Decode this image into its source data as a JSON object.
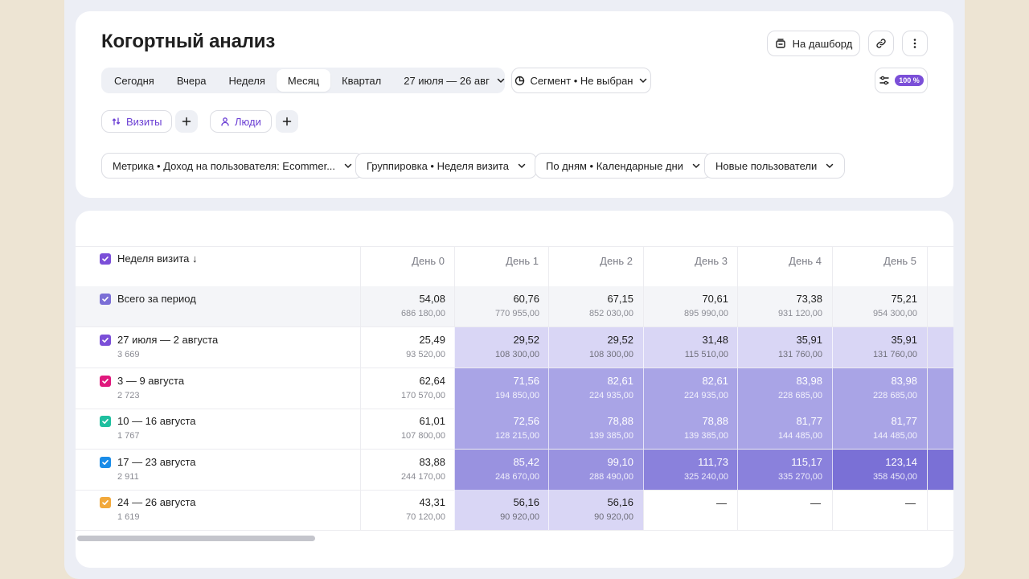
{
  "header": {
    "title": "Когортный анализ",
    "dashboard_label": "На дашборд",
    "sampling_badge": "100 %"
  },
  "periods": {
    "items": [
      "Сегодня",
      "Вчера",
      "Неделя",
      "Месяц",
      "Квартал"
    ],
    "active_index": 3,
    "date_range": "27 июля — 26 авг"
  },
  "segment": {
    "label": "Сегмент • Не выбран"
  },
  "entities": [
    {
      "label": "Визиты",
      "icon": "visits-icon"
    },
    {
      "label": "Люди",
      "icon": "people-icon"
    }
  ],
  "filters": [
    "Метрика • Доход на пользователя: Ecommer...",
    "Группировка • Неделя визита",
    "По дням • Календарные дни",
    "Новые пользователи"
  ],
  "table": {
    "group_header": "Неделя визита ↓",
    "columns": [
      "День 0",
      "День 1",
      "День 2",
      "День 3",
      "День 4",
      "День 5"
    ],
    "total": {
      "label": "Всего за период",
      "values": [
        [
          "54,08",
          "686 180,00"
        ],
        [
          "60,76",
          "770 955,00"
        ],
        [
          "67,15",
          "852 030,00"
        ],
        [
          "70,61",
          "895 990,00"
        ],
        [
          "73,38",
          "931 120,00"
        ],
        [
          "75,21",
          "954 300,00"
        ]
      ]
    },
    "rows": [
      {
        "label": "27 июля — 2 августа",
        "sub": "3 669",
        "color": "#7b4fd8",
        "cells": [
          [
            "25,49",
            "93 520,00"
          ],
          [
            "29,52",
            "108 300,00"
          ],
          [
            "29,52",
            "108 300,00"
          ],
          [
            "31,48",
            "115 510,00"
          ],
          [
            "35,91",
            "131 760,00"
          ],
          [
            "35,91",
            "131 760,00"
          ]
        ],
        "shade": [
          0,
          1,
          1,
          1,
          1,
          1
        ]
      },
      {
        "label": "3 — 9 августа",
        "sub": "2 723",
        "color": "#e0197d",
        "cells": [
          [
            "62,64",
            "170 570,00"
          ],
          [
            "71,56",
            "194 850,00"
          ],
          [
            "82,61",
            "224 935,00"
          ],
          [
            "82,61",
            "224 935,00"
          ],
          [
            "83,98",
            "228 685,00"
          ],
          [
            "83,98",
            "228 685,00"
          ]
        ],
        "shade": [
          0,
          2,
          2,
          2,
          2,
          2
        ]
      },
      {
        "label": "10 — 16 августа",
        "sub": "1 767",
        "color": "#1fbf9f",
        "cells": [
          [
            "61,01",
            "107 800,00"
          ],
          [
            "72,56",
            "128 215,00"
          ],
          [
            "78,88",
            "139 385,00"
          ],
          [
            "78,88",
            "139 385,00"
          ],
          [
            "81,77",
            "144 485,00"
          ],
          [
            "81,77",
            "144 485,00"
          ]
        ],
        "shade": [
          0,
          2,
          2,
          2,
          2,
          2
        ]
      },
      {
        "label": "17 — 23 августа",
        "sub": "2 911",
        "color": "#1a8ce8",
        "cells": [
          [
            "83,88",
            "244 170,00"
          ],
          [
            "85,42",
            "248 670,00"
          ],
          [
            "99,10",
            "288 490,00"
          ],
          [
            "111,73",
            "325 240,00"
          ],
          [
            "115,17",
            "335 270,00"
          ],
          [
            "123,14",
            "358 450,00"
          ]
        ],
        "shade": [
          0,
          3,
          3,
          4,
          4,
          5
        ]
      },
      {
        "label": "24 — 26 августа",
        "sub": "1 619",
        "color": "#f2a93b",
        "cells": [
          [
            "43,31",
            "70 120,00"
          ],
          [
            "56,16",
            "90 920,00"
          ],
          [
            "56,16",
            "90 920,00"
          ],
          [
            "—",
            ""
          ],
          [
            "—",
            ""
          ],
          [
            "—",
            ""
          ]
        ],
        "shade": [
          0,
          1,
          1,
          0,
          0,
          0
        ]
      }
    ],
    "shade_colors": [
      "#ffffff",
      "#d9d6f5",
      "#a9a4e6",
      "#9992e0",
      "#8a81dc",
      "#7a70d6"
    ]
  }
}
